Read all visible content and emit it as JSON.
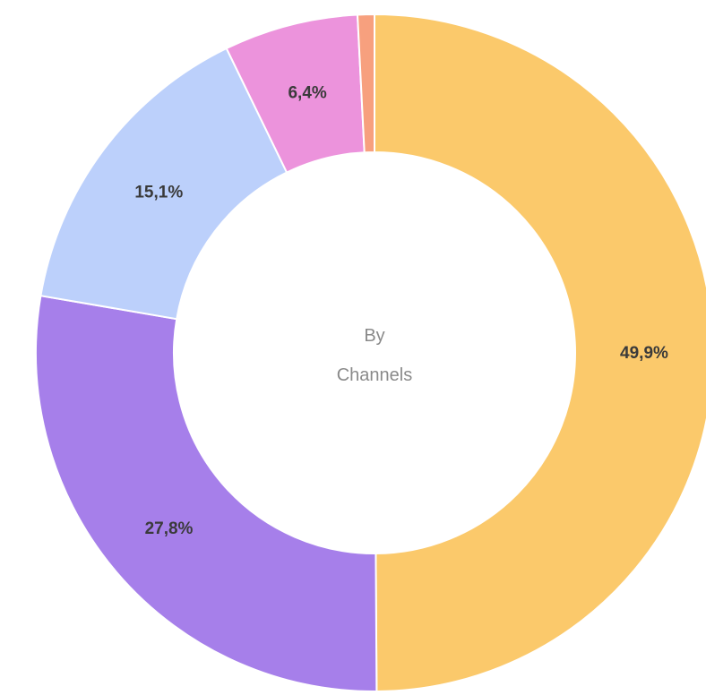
{
  "chart_data": {
    "type": "pie",
    "title": "",
    "center_label": [
      "By",
      "Channels"
    ],
    "slices": [
      {
        "value": 49.9,
        "label": "49,9%",
        "color": "#fbc96b"
      },
      {
        "value": 27.8,
        "label": "27,8%",
        "color": "#a67fea"
      },
      {
        "value": 15.1,
        "label": "15,1%",
        "color": "#bcd0fb"
      },
      {
        "value": 6.4,
        "label": "6,4%",
        "color": "#ec93dc"
      },
      {
        "value": 0.8,
        "label": "",
        "color": "#f7a07e"
      }
    ],
    "legend": "none"
  }
}
